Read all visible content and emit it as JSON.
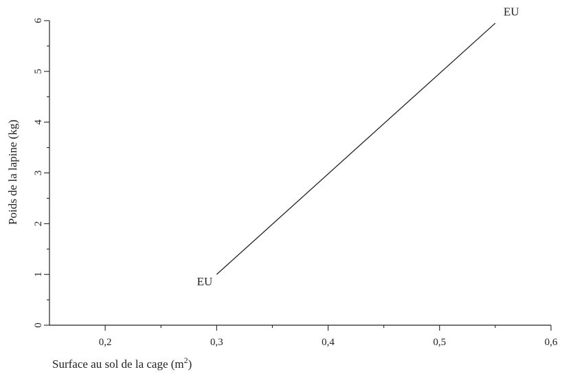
{
  "chart_data": {
    "type": "line",
    "xlabel_main": "Surface au sol de la cage (m",
    "xlabel_sup": "2",
    "xlabel_end": ")",
    "ylabel": "Poids de la lapine (kg)",
    "xlim": [
      0.15,
      0.6
    ],
    "ylim": [
      0,
      6
    ],
    "x_ticks": [
      {
        "value": 0.2,
        "label": "0,2"
      },
      {
        "value": 0.3,
        "label": "0,3"
      },
      {
        "value": 0.4,
        "label": "0,4"
      },
      {
        "value": 0.5,
        "label": "0,5"
      },
      {
        "value": 0.6,
        "label": "0,6"
      }
    ],
    "x_minor_ticks": [
      0.25,
      0.35,
      0.45,
      0.55
    ],
    "y_ticks": [
      {
        "value": 0,
        "label": "0"
      },
      {
        "value": 1,
        "label": "1"
      },
      {
        "value": 2,
        "label": "2"
      },
      {
        "value": 3,
        "label": "3"
      },
      {
        "value": 4,
        "label": "4"
      },
      {
        "value": 5,
        "label": "5"
      },
      {
        "value": 6,
        "label": "6"
      }
    ],
    "y_minor_ticks": [
      0.5,
      1.5,
      2.5,
      3.5,
      4.5,
      5.5
    ],
    "series": [
      {
        "x": [
          0.3,
          0.55
        ],
        "y": [
          1,
          5.95
        ]
      }
    ],
    "annotations": [
      {
        "text": "EU",
        "x": 0.3,
        "y": 1,
        "anchor": "end"
      },
      {
        "text": "EU",
        "x": 0.55,
        "y": 5.95,
        "anchor": "start"
      }
    ],
    "grid": false
  }
}
